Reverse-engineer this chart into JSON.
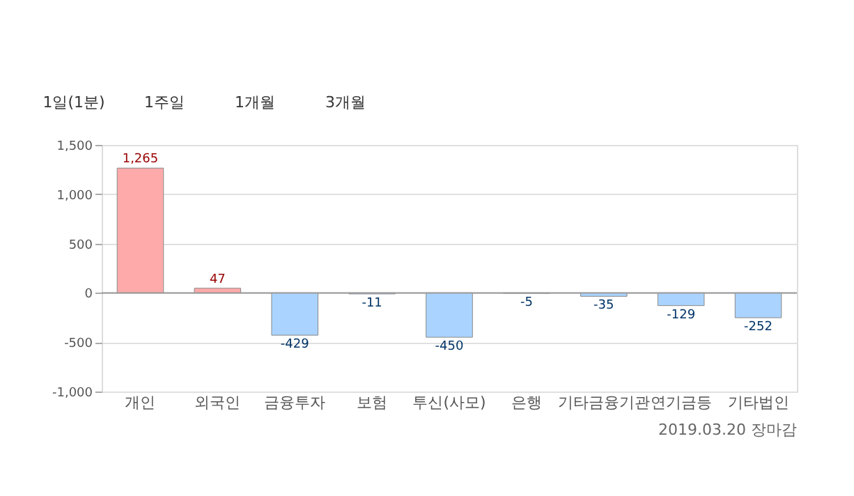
{
  "chart_data": {
    "type": "bar",
    "categories": [
      "개인",
      "외국인",
      "금융투자",
      "보험",
      "투신(사모)",
      "은행",
      "기타금융기관",
      "연기금등",
      "기타법인"
    ],
    "values": [
      1265,
      47,
      -429,
      -11,
      -450,
      -5,
      -35,
      -129,
      -252
    ],
    "colors": [
      "#ffaaaa",
      "#ffaaaa",
      "#aad4ff",
      "#aad4ff",
      "#aad4ff",
      "#aad4ff",
      "#aad4ff",
      "#aad4ff",
      "#aad4ff"
    ],
    "ylim": [
      -1000,
      1500
    ],
    "yticks": [
      {
        "value": -1000,
        "label": "-1,000"
      },
      {
        "value": -500,
        "label": "-500"
      },
      0,
      {
        "value": 500,
        "label": "500"
      },
      {
        "value": 1000,
        "label": "1,000"
      },
      {
        "value": 1500,
        "label": "1,500"
      }
    ],
    "grid": "y",
    "value_labels": [
      "1,265",
      "47",
      "-429",
      "-11",
      "-450",
      "-5",
      "-35",
      "-129",
      "-252"
    ],
    "annotations": [
      "1일(1분)",
      "1주일",
      "1개월",
      "3개월",
      "2019.03.20 장마감"
    ]
  }
}
